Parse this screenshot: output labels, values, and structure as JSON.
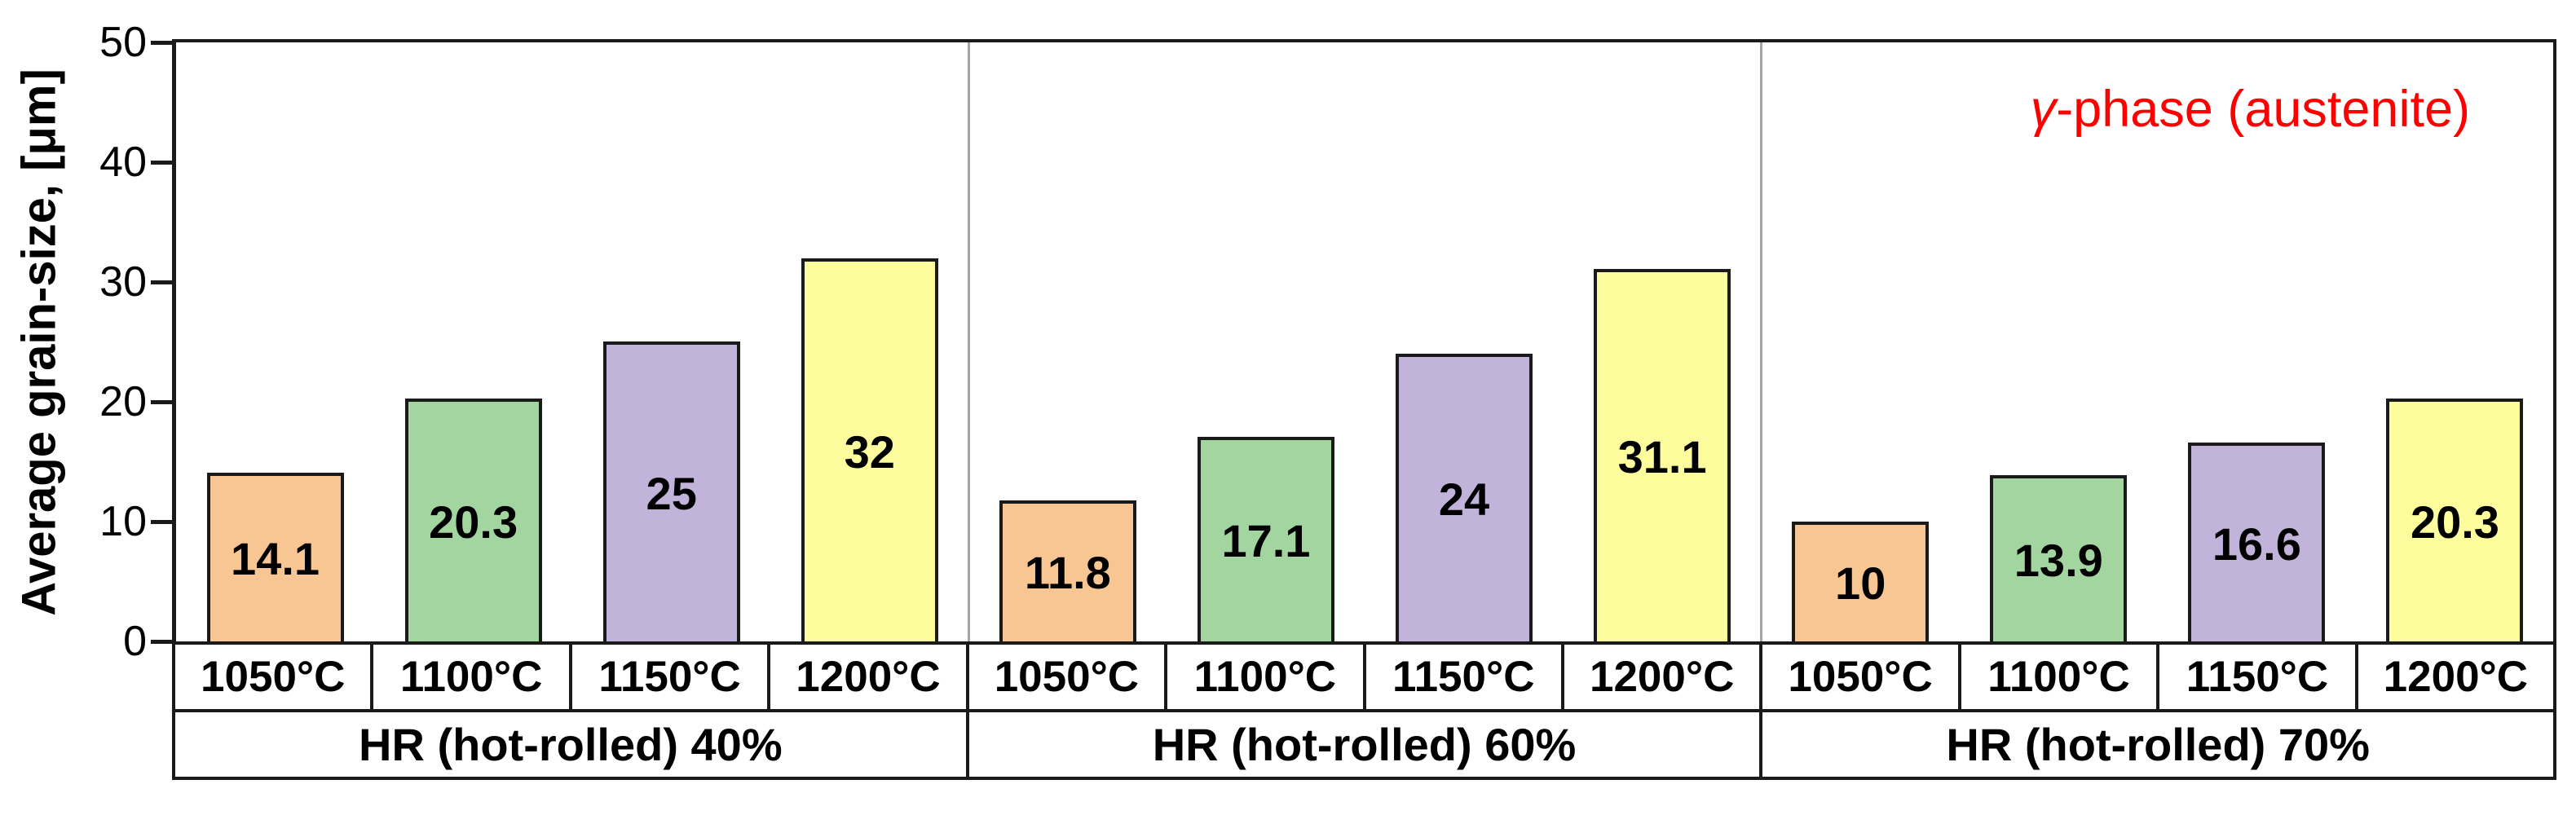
{
  "chart_data": {
    "type": "bar",
    "title": "",
    "xlabel": "",
    "ylabel": "Average grain-size, [μm]",
    "ylim": [
      0,
      50
    ],
    "yticks": [
      0,
      10,
      20,
      30,
      40,
      50
    ],
    "grid": false,
    "legend": "none",
    "annotation": {
      "symbol": "γ",
      "text": "-phase (austenite)",
      "color": "#ff0000"
    },
    "categories": [
      "1050°C",
      "1100°C",
      "1150°C",
      "1200°C"
    ],
    "bar_colors": [
      "#F8C693",
      "#A3D5A0",
      "#C1B3DA",
      "#FDFD9E"
    ],
    "groups": [
      {
        "label": "HR (hot-rolled) 40%",
        "values": [
          14.1,
          20.3,
          25,
          32
        ],
        "value_labels": [
          "14.1",
          "20.3",
          "25",
          "32"
        ]
      },
      {
        "label": "HR (hot-rolled) 60%",
        "values": [
          11.8,
          17.1,
          24,
          31.1
        ],
        "value_labels": [
          "11.8",
          "17.1",
          "24",
          "31.1"
        ]
      },
      {
        "label": "HR (hot-rolled) 70%",
        "values": [
          10,
          13.9,
          16.6,
          20.3
        ],
        "value_labels": [
          "10",
          "13.9",
          "16.6",
          "20.3"
        ]
      }
    ]
  }
}
